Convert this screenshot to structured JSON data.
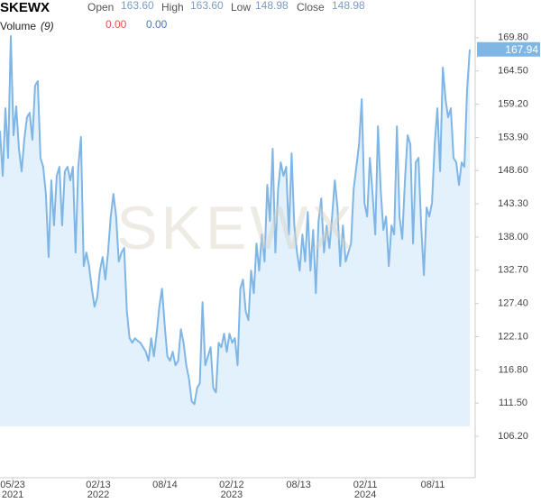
{
  "chart_data": {
    "type": "line",
    "title": "SKEWX",
    "quote": {
      "open_label": "Open",
      "open": "163.60",
      "high_label": "High",
      "high": "163.60",
      "low_label": "Low",
      "low": "148.98",
      "close_label": "Close",
      "close": "148.98"
    },
    "volume": {
      "label": "Volume",
      "period": "(9)",
      "value_a": "0.00",
      "value_b": "0.00"
    },
    "series": [
      {
        "color": "#7fb6e6",
        "fill": "#e2f1fc",
        "values": [
          154.95,
          147.76,
          158.55,
          150.64,
          170.06,
          154.23,
          158.84,
          152.08,
          148.48,
          153.52,
          157.11,
          157.83,
          153.52,
          162.15,
          162.87,
          150.64,
          149.2,
          144.88,
          134.81,
          147.04,
          139.85,
          147.76,
          149.2,
          139.85,
          148.48,
          149.2,
          147.04,
          149.2,
          135.53,
          149.2,
          153.95,
          133.37,
          135.53,
          133.37,
          129.77,
          126.89,
          128.33,
          132.65,
          134.81,
          131.21,
          135.53,
          141.28,
          144.88,
          141.28,
          134.09,
          135.53,
          136.25,
          126.17,
          121.86,
          121.14,
          121.86,
          121.43,
          121.14,
          120.42,
          119.7,
          118.26,
          121.86,
          118.98,
          122.58,
          126.89,
          129.77,
          124.02,
          118.98,
          118.26,
          119.7,
          117.54,
          118.26,
          123.3,
          121.14,
          117.54,
          115.38,
          111.78,
          111.35,
          113.94,
          114.66,
          127.61,
          117.54,
          118.98,
          120.42,
          113.94,
          113.22,
          121.14,
          120.42,
          122.58,
          119.7,
          122.58,
          121.14,
          121.86,
          117.54,
          129.77,
          131.21,
          126.17,
          124.74,
          132.65,
          129.05,
          136.97,
          132.65,
          138.41,
          134.09,
          146.32,
          140.56,
          152.08,
          135.53,
          145.6,
          149.92,
          147.76,
          149.2,
          138.41,
          151.36,
          139.85,
          135.53,
          132.65,
          138.41,
          134.09,
          142.0,
          132.65,
          139.13,
          129.05,
          140.56,
          144.16,
          135.53,
          139.85,
          136.25,
          141.28,
          147.04,
          142.72,
          133.37,
          139.85,
          134.09,
          135.53,
          136.97,
          145.6,
          149.2,
          152.8,
          159.99,
          143.44,
          141.28,
          150.64,
          144.88,
          138.41,
          155.67,
          145.6,
          139.13,
          141.28,
          133.37,
          139.85,
          138.41,
          155.67,
          141.28,
          137.69,
          147.04,
          154.23,
          152.8,
          136.97,
          149.92,
          150.64,
          139.85,
          131.93,
          142.72,
          141.28,
          143.44,
          152.8,
          158.55,
          148.48,
          165.03,
          159.99,
          157.11,
          158.55,
          150.64,
          149.92,
          146.32,
          149.92,
          149.2,
          161.43,
          167.94
        ]
      }
    ],
    "xlim": [
      0,
      174
    ],
    "xticks": [
      {
        "value": 4.7,
        "label": "05/23",
        "year": "2021"
      },
      {
        "value": 36.4,
        "label": "02/13",
        "year": "2022"
      },
      {
        "value": 61.1,
        "label": "08/14"
      },
      {
        "value": 85.8,
        "label": "02/12",
        "year": "2023"
      },
      {
        "value": 110.6,
        "label": "08/13"
      },
      {
        "value": 135.3,
        "label": "02/11",
        "year": "2024"
      },
      {
        "value": 160.3,
        "label": "08/11"
      }
    ],
    "ylim": [
      99.6,
      171.5
    ],
    "yticks": [
      {
        "value": 106.2,
        "label": "106.20"
      },
      {
        "value": 111.5,
        "label": "111.50"
      },
      {
        "value": 116.8,
        "label": "116.80"
      },
      {
        "value": 122.1,
        "label": "122.10"
      },
      {
        "value": 127.4,
        "label": "127.40"
      },
      {
        "value": 132.7,
        "label": "132.70"
      },
      {
        "value": 138,
        "label": "138.00"
      },
      {
        "value": 143.3,
        "label": "143.30"
      },
      {
        "value": 148.6,
        "label": "148.60"
      },
      {
        "value": 153.9,
        "label": "153.90"
      },
      {
        "value": 159.2,
        "label": "159.20"
      },
      {
        "value": 164.5,
        "label": "164.50"
      },
      {
        "value": 169.8,
        "label": "169.80"
      }
    ],
    "grid": false
  }
}
